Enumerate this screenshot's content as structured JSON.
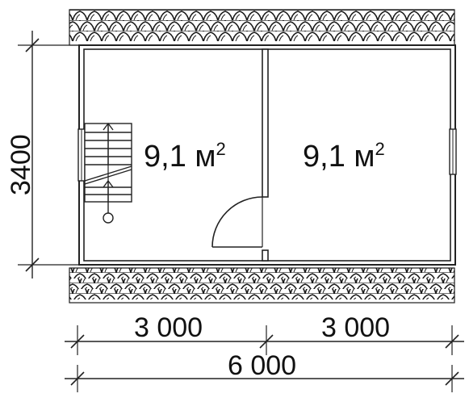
{
  "rooms": [
    {
      "area_value": "9,1 м",
      "area_exp": "2"
    },
    {
      "area_value": "9,1 м",
      "area_exp": "2"
    }
  ],
  "dimensions": {
    "height": "3400",
    "left_width": "3 000",
    "right_width": "3 000",
    "total_width": "6 000"
  },
  "colors": {
    "line": "#222222",
    "background": "#ffffff"
  }
}
